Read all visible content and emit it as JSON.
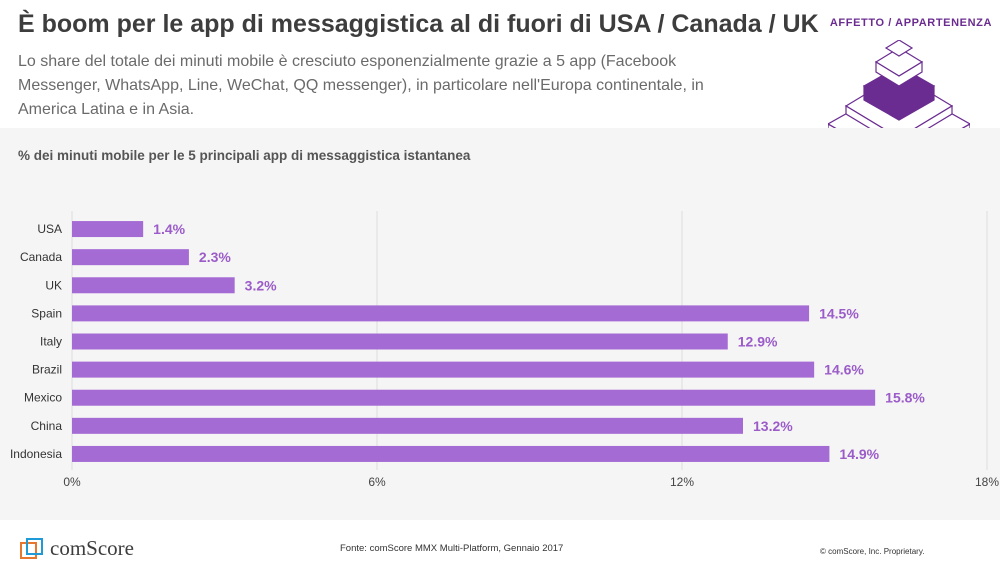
{
  "header": {
    "title": "È boom per le app di messaggistica al di fuori di USA / Canada / UK",
    "subtitle": "Lo share del totale dei minuti mobile è cresciuto esponenzialmente grazie a 5 app (Facebook Messenger, WhatsApp, Line, WeChat, QQ messenger), in particolare nell'Europa continentale, in America Latina e in Asia.",
    "tag": "AFFETTO / APPARTENENZA"
  },
  "colors": {
    "bar": "#a56bd4",
    "label": "#9b5cc9",
    "accent": "#6b2c91",
    "pyramid_fill": "#6b2c91"
  },
  "chart_data": {
    "type": "bar",
    "orientation": "horizontal",
    "title": "% dei minuti mobile per le 5 principali app di messaggistica istantanea",
    "categories": [
      "USA",
      "Canada",
      "UK",
      "Spain",
      "Italy",
      "Brazil",
      "Mexico",
      "China",
      "Indonesia"
    ],
    "values": [
      1.4,
      2.3,
      3.2,
      14.5,
      12.9,
      14.6,
      15.8,
      13.2,
      14.9
    ],
    "value_labels": [
      "1.4%",
      "2.3%",
      "3.2%",
      "14.5%",
      "12.9%",
      "14.6%",
      "15.8%",
      "13.2%",
      "14.9%"
    ],
    "xlim": [
      0,
      18
    ],
    "x_ticks": [
      0,
      6,
      12,
      18
    ],
    "x_tick_labels": [
      "0%",
      "6%",
      "12%",
      "18%"
    ],
    "grid": true,
    "xlabel": "",
    "ylabel": ""
  },
  "footer": {
    "logo_text": "comScore",
    "source": "Fonte: comScore MMX Multi-Platform, Gennaio 2017",
    "copyright": "© comScore, Inc. Proprietary."
  }
}
